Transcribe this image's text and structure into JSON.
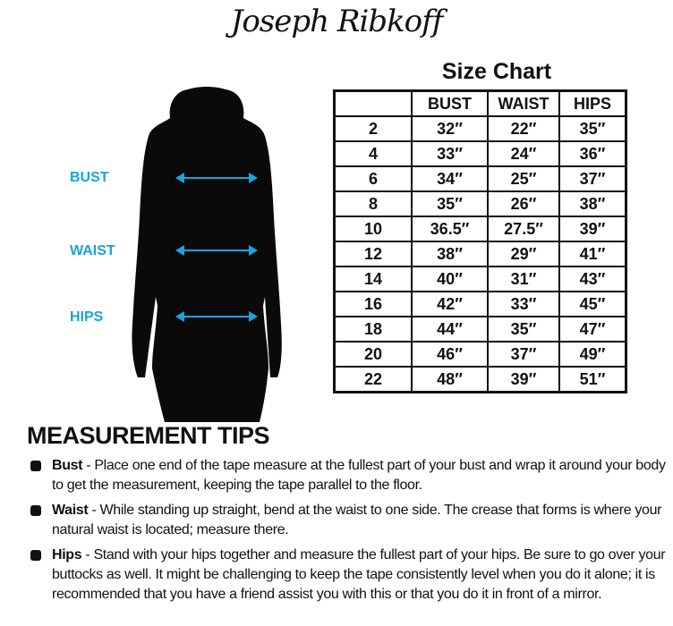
{
  "brand": {
    "logo_text": "Joseph Ribkoff"
  },
  "size_chart": {
    "title": "Size Chart",
    "headers": [
      "",
      "BUST",
      "WAIST",
      "HIPS"
    ],
    "rows": [
      [
        "2",
        "32″",
        "22″",
        "35″"
      ],
      [
        "4",
        "33″",
        "24″",
        "36″"
      ],
      [
        "6",
        "34″",
        "25″",
        "37″"
      ],
      [
        "8",
        "35″",
        "26″",
        "38″"
      ],
      [
        "10",
        "36.5″",
        "27.5″",
        "39″"
      ],
      [
        "12",
        "38″",
        "29″",
        "41″"
      ],
      [
        "14",
        "40″",
        "31″",
        "43″"
      ],
      [
        "16",
        "42″",
        "33″",
        "45″"
      ],
      [
        "18",
        "44″",
        "35″",
        "47″"
      ],
      [
        "20",
        "46″",
        "37″",
        "49″"
      ],
      [
        "22",
        "48″",
        "39″",
        "51″"
      ]
    ]
  },
  "figure": {
    "labels": {
      "bust": "BUST",
      "waist": "WAIST",
      "hips": "HIPS"
    },
    "accent_color": "#1aa3e0"
  },
  "tips": {
    "title": "MEASUREMENT TIPS",
    "items": [
      {
        "term": "Bust",
        "text": " - Place one end of the tape measure at the fullest part of your bust and wrap it around your body to get the measurement, keeping the tape parallel to the floor."
      },
      {
        "term": "Waist",
        "text": " - While standing up straight, bend at the waist to one side. The crease that forms is where your natural waist is located; measure there."
      },
      {
        "term": "Hips",
        "text": " - Stand with your hips together and measure the fullest part of your hips. Be sure to go over your buttocks as well. It might be challenging to keep the tape consistently level when you do it alone; it is recommended that you have a friend assist you with this or that you do it in front of a mirror."
      }
    ]
  }
}
